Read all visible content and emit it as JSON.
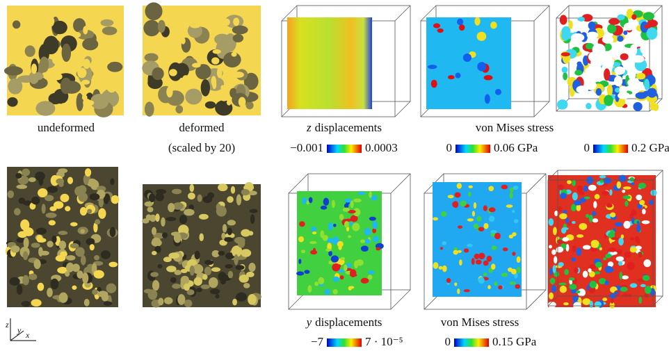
{
  "top_row": {
    "undeformed": "undeformed",
    "deformed": "deformed",
    "deformed_note": "(scaled by 20)",
    "z_displacements": {
      "variable": "z",
      "text": "displacements"
    },
    "stress": "von Mises stress",
    "colorbars": [
      {
        "min": "−0.001",
        "max": "0.0003"
      },
      {
        "min": "0",
        "max": "0.06 GPa"
      },
      {
        "min": "0",
        "max": "0.2 GPa"
      }
    ]
  },
  "bottom_row": {
    "y_displacements": {
      "variable": "y",
      "text": "displacements"
    },
    "stress": "von Mises stress",
    "colorbars": [
      {
        "min": "−7",
        "max": "7 · 10⁻⁵"
      },
      {
        "min": "0",
        "max": "0.15 GPa"
      }
    ]
  },
  "axes": {
    "z": "z",
    "y": "y",
    "x": "x"
  }
}
